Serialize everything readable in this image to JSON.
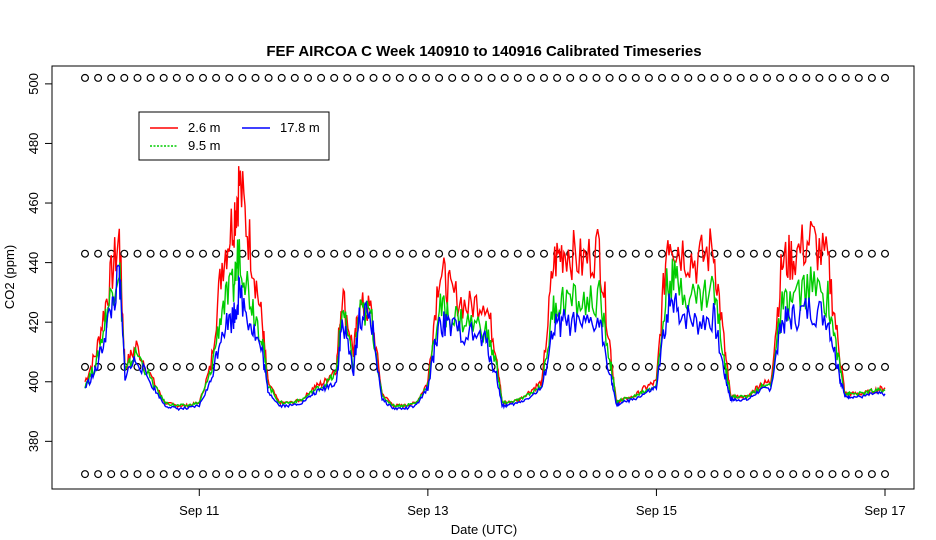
{
  "chart_data": {
    "type": "line",
    "title": "FEF AIRCOA C  Week 140910 to 140916  Calibrated Timeseries",
    "xlabel": "Date (UTC)",
    "ylabel": "CO2 (ppm)",
    "x_unit": "days (2014-09-10 00:00 = 10)",
    "xlim": [
      10,
      17
    ],
    "ylim": [
      364,
      506
    ],
    "x_ticks": [
      {
        "value": 11,
        "label": "Sep 11"
      },
      {
        "value": 13,
        "label": "Sep 13"
      },
      {
        "value": 15,
        "label": "Sep 15"
      },
      {
        "value": 17,
        "label": "Sep 17"
      }
    ],
    "y_ticks": [
      {
        "value": 380,
        "label": "380"
      },
      {
        "value": 400,
        "label": "400"
      },
      {
        "value": 420,
        "label": "420"
      },
      {
        "value": 440,
        "label": "440"
      },
      {
        "value": 460,
        "label": "460"
      },
      {
        "value": 480,
        "label": "480"
      },
      {
        "value": 500,
        "label": "500"
      }
    ],
    "legend_position": "top-left",
    "legend": [
      {
        "name": "2.6 m",
        "color": "#ff0000"
      },
      {
        "name": "9.5 m",
        "color": "#00cc00"
      },
      {
        "name": "17.8 m",
        "color": "#0000ff"
      }
    ],
    "series": [
      {
        "name": "2.6 m",
        "color": "#ff0000",
        "x": [
          10.0,
          10.1,
          10.2,
          10.3,
          10.35,
          10.45,
          10.6,
          10.7,
          10.8,
          10.9,
          11.0,
          11.1,
          11.2,
          11.3,
          11.35,
          11.45,
          11.55,
          11.6,
          11.7,
          11.8,
          11.9,
          12.0,
          12.1,
          12.2,
          12.25,
          12.35,
          12.4,
          12.5,
          12.6,
          12.7,
          12.8,
          12.9,
          13.0,
          13.1,
          13.2,
          13.35,
          13.5,
          13.6,
          13.65,
          13.7,
          13.8,
          13.9,
          14.0,
          14.1,
          14.2,
          14.35,
          14.5,
          14.6,
          14.65,
          14.7,
          14.8,
          14.9,
          15.0,
          15.1,
          15.2,
          15.35,
          15.5,
          15.6,
          15.65,
          15.7,
          15.8,
          15.9,
          16.0,
          16.1,
          16.2,
          16.35,
          16.5,
          16.6,
          16.65,
          16.7,
          16.8,
          16.9,
          17.0
        ],
        "y": [
          400,
          410,
          430,
          448,
          405,
          412,
          400,
          393,
          392,
          392,
          393,
          405,
          440,
          455,
          467,
          445,
          420,
          400,
          393,
          393,
          394,
          398,
          400,
          405,
          430,
          410,
          425,
          424,
          396,
          392,
          392,
          393,
          400,
          438,
          430,
          425,
          428,
          410,
          393,
          393,
          394,
          397,
          400,
          440,
          445,
          440,
          445,
          410,
          393,
          394,
          395,
          398,
          400,
          450,
          445,
          440,
          445,
          410,
          395,
          395,
          395,
          399,
          400,
          440,
          442,
          448,
          440,
          410,
          396,
          396,
          396,
          397,
          398
        ]
      },
      {
        "name": "9.5 m",
        "color": "#00cc00",
        "x": [
          10.0,
          10.1,
          10.2,
          10.3,
          10.35,
          10.45,
          10.6,
          10.7,
          10.8,
          10.9,
          11.0,
          11.1,
          11.2,
          11.3,
          11.35,
          11.45,
          11.55,
          11.6,
          11.7,
          11.8,
          11.9,
          12.0,
          12.1,
          12.2,
          12.25,
          12.35,
          12.4,
          12.5,
          12.6,
          12.7,
          12.8,
          12.9,
          13.0,
          13.1,
          13.2,
          13.35,
          13.5,
          13.6,
          13.65,
          13.7,
          13.8,
          13.9,
          14.0,
          14.1,
          14.2,
          14.35,
          14.5,
          14.6,
          14.65,
          14.7,
          14.8,
          14.9,
          15.0,
          15.1,
          15.2,
          15.35,
          15.5,
          15.6,
          15.65,
          15.7,
          15.8,
          15.9,
          16.0,
          16.1,
          16.2,
          16.35,
          16.5,
          16.6,
          16.65,
          16.7,
          16.8,
          16.9,
          17.0
        ],
        "y": [
          399,
          406,
          425,
          440,
          403,
          410,
          399,
          393,
          392,
          392,
          393,
          403,
          425,
          432,
          445,
          428,
          415,
          399,
          393,
          393,
          394,
          397,
          399,
          403,
          425,
          405,
          423,
          423,
          395,
          392,
          392,
          393,
          399,
          425,
          422,
          420,
          418,
          406,
          393,
          393,
          394,
          396,
          399,
          425,
          428,
          426,
          428,
          406,
          393,
          394,
          395,
          397,
          399,
          435,
          433,
          428,
          432,
          406,
          395,
          395,
          395,
          398,
          399,
          425,
          428,
          432,
          428,
          406,
          396,
          396,
          396,
          397,
          397
        ]
      },
      {
        "name": "17.8 m",
        "color": "#0000ff",
        "x": [
          10.0,
          10.1,
          10.2,
          10.3,
          10.35,
          10.45,
          10.6,
          10.7,
          10.8,
          10.9,
          11.0,
          11.1,
          11.2,
          11.3,
          11.35,
          11.45,
          11.55,
          11.6,
          11.7,
          11.8,
          11.9,
          12.0,
          12.1,
          12.2,
          12.25,
          12.35,
          12.4,
          12.5,
          12.6,
          12.7,
          12.8,
          12.9,
          13.0,
          13.1,
          13.2,
          13.35,
          13.5,
          13.6,
          13.65,
          13.7,
          13.8,
          13.9,
          14.0,
          14.1,
          14.2,
          14.35,
          14.5,
          14.6,
          14.65,
          14.7,
          14.8,
          14.9,
          15.0,
          15.1,
          15.2,
          15.35,
          15.5,
          15.6,
          15.65,
          15.7,
          15.8,
          15.9,
          16.0,
          16.1,
          16.2,
          16.35,
          16.5,
          16.6,
          16.65,
          16.7,
          16.8,
          16.9,
          17.0
        ],
        "y": [
          398,
          404,
          420,
          435,
          402,
          408,
          398,
          392,
          391,
          391,
          392,
          400,
          418,
          422,
          430,
          420,
          410,
          397,
          392,
          392,
          393,
          396,
          398,
          400,
          420,
          404,
          422,
          422,
          394,
          391,
          391,
          392,
          398,
          420,
          418,
          416,
          414,
          402,
          392,
          392,
          393,
          395,
          398,
          418,
          420,
          418,
          420,
          402,
          392,
          393,
          394,
          396,
          398,
          425,
          424,
          420,
          422,
          402,
          394,
          394,
          394,
          397,
          398,
          420,
          422,
          425,
          422,
          402,
          395,
          395,
          395,
          396,
          396
        ]
      }
    ],
    "marker_rows": [
      {
        "y": 502,
        "x_start": 10.0,
        "x_end": 17.0,
        "count": 62,
        "symbol": "o"
      },
      {
        "y": 443,
        "x_start": 10.0,
        "x_end": 17.0,
        "count": 62,
        "symbol": "o"
      },
      {
        "y": 405,
        "x_start": 10.0,
        "x_end": 17.0,
        "count": 62,
        "symbol": "o"
      },
      {
        "y": 369,
        "x_start": 10.0,
        "x_end": 17.0,
        "count": 62,
        "symbol": "o"
      }
    ]
  }
}
